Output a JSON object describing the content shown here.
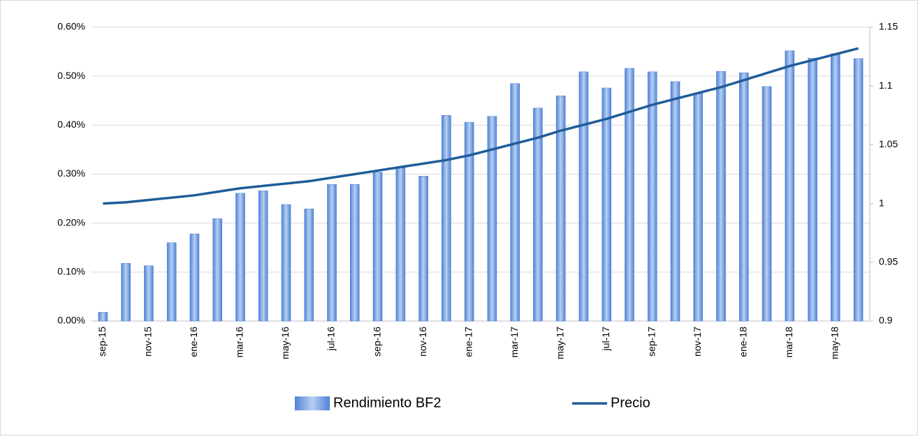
{
  "chart_data": {
    "type": "bar",
    "categories": [
      "sep-15",
      null,
      "nov-15",
      null,
      "ene-16",
      null,
      "mar-16",
      null,
      "may-16",
      null,
      "jul-16",
      null,
      "sep-16",
      null,
      "nov-16",
      null,
      "ene-17",
      null,
      "mar-17",
      null,
      "may-17",
      null,
      "jul-17",
      null,
      "sep-17",
      null,
      "nov-17",
      null,
      "ene-18",
      null,
      "mar-18",
      null,
      "may-18",
      null
    ],
    "series": [
      {
        "name": "Rendimiento BF2",
        "type": "bar",
        "color": "#4f81d6",
        "values": [
          0.018,
          0.118,
          0.113,
          0.16,
          0.178,
          0.209,
          0.261,
          0.266,
          0.238,
          0.229,
          0.279,
          0.279,
          0.304,
          0.314,
          0.296,
          0.42,
          0.406,
          0.418,
          0.485,
          0.435,
          0.46,
          0.509,
          0.476,
          0.516,
          0.509,
          0.489,
          0.465,
          0.51,
          0.507,
          0.479,
          0.552,
          0.537,
          0.546,
          0.536
        ]
      },
      {
        "name": "Precio",
        "type": "line",
        "axis": "y2",
        "color": "#1f5c99",
        "values": [
          1.0,
          1.001,
          1.003,
          1.005,
          1.007,
          1.01,
          1.013,
          1.015,
          1.017,
          1.019,
          1.022,
          1.025,
          1.028,
          1.031,
          1.034,
          1.037,
          1.041,
          1.046,
          1.051,
          1.056,
          1.062,
          1.067,
          1.072,
          1.078,
          1.084,
          1.089,
          1.094,
          1.099,
          1.105,
          1.111,
          1.117,
          1.122,
          1.127,
          1.132
        ]
      }
    ],
    "ylim": [
      0,
      0.6
    ],
    "yticks": [
      {
        "value": 0,
        "label": "0.00%"
      },
      {
        "value": 0.1,
        "label": "0.10%"
      },
      {
        "value": 0.2,
        "label": "0.20%"
      },
      {
        "value": 0.3,
        "label": "0.30%"
      },
      {
        "value": 0.4,
        "label": "0.40%"
      },
      {
        "value": 0.5,
        "label": "0.50%"
      },
      {
        "value": 0.6,
        "label": "0.60%"
      }
    ],
    "y2lim": [
      0.9,
      1.15
    ],
    "y2ticks": [
      0.9,
      0.95,
      1,
      1.05,
      1.1,
      1.15
    ],
    "grid": true,
    "legend": "bottom"
  }
}
